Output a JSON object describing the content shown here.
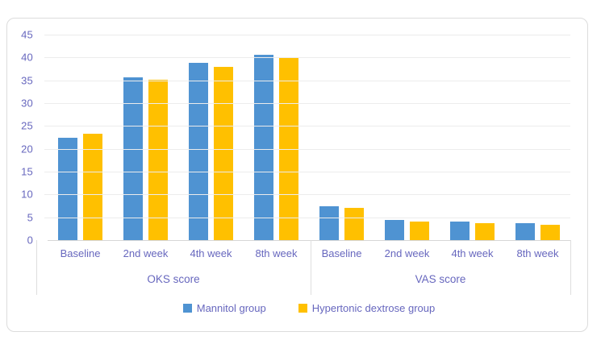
{
  "chart_data": {
    "type": "bar",
    "title": "",
    "grid": true,
    "y_axis": {
      "min": 0,
      "max": 45,
      "step": 5,
      "tick_labels": [
        "45",
        "40",
        "35",
        "30",
        "25",
        "20",
        "15",
        "10",
        "5",
        "0"
      ]
    },
    "x_axis": {
      "groups": [
        {
          "label": "OKS score",
          "categories": [
            "Baseline",
            "2nd week",
            "4th week",
            "8th week"
          ]
        },
        {
          "label": "VAS score",
          "categories": [
            "Baseline",
            "2nd week",
            "4th week",
            "8th week"
          ]
        }
      ]
    },
    "series": [
      {
        "name": "Mannitol group",
        "color": "#4F93D2",
        "values": [
          22.4,
          35.6,
          38.9,
          40.6,
          7.4,
          4.4,
          4.1,
          3.7
        ]
      },
      {
        "name": "Hypertonic dextrose group",
        "color": "#FFC000",
        "values": [
          23.3,
          35.1,
          37.9,
          40.0,
          7.0,
          4.1,
          3.7,
          3.4
        ]
      }
    ],
    "legend": {
      "position": "bottom"
    }
  },
  "frame": {
    "background": "#ffffff",
    "border_color": "#dcdcdc",
    "gridline_color": "#ececec",
    "axis_line_color": "#d6d6d6",
    "label_color": "#6767be"
  }
}
